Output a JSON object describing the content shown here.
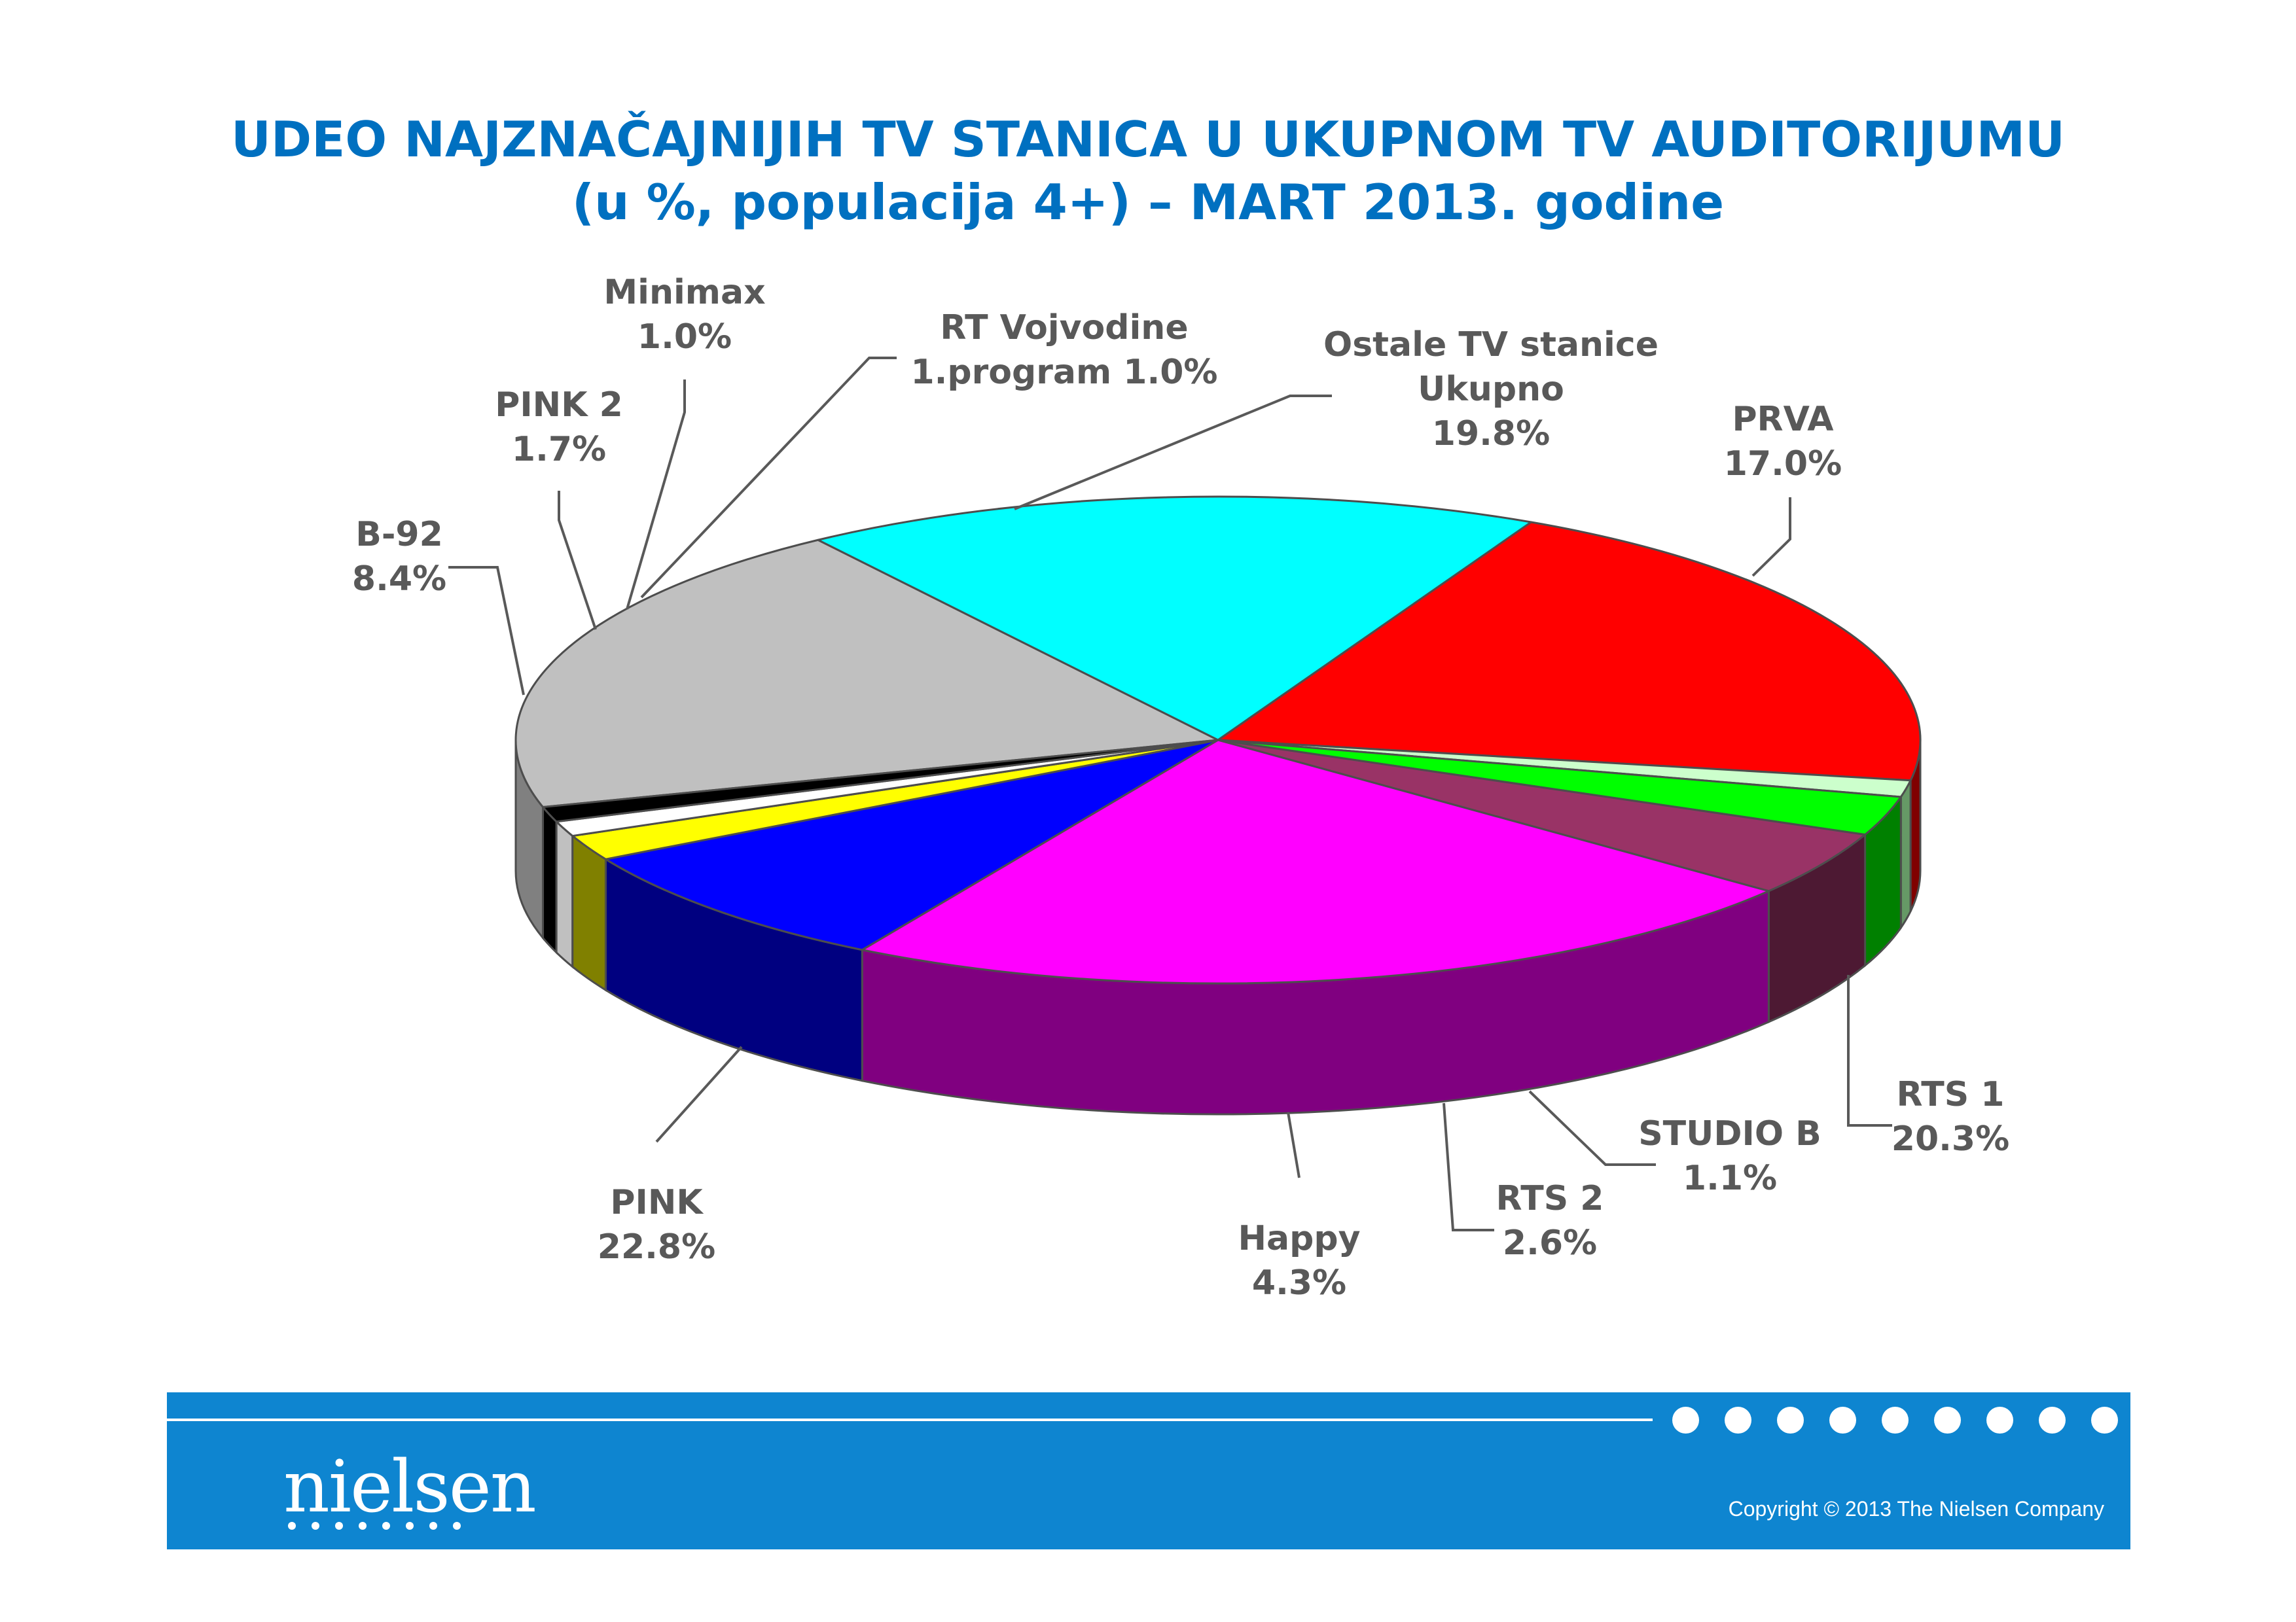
{
  "title": {
    "line1": "UDEO NAJZNAČAJNIJIH TV STANICA U UKUPNOM TV AUDITORIJUMU",
    "line2": "(u %, populacija 4+) – MART 2013. godine"
  },
  "chart_data": {
    "type": "pie",
    "title": "UDEO NAJZNAČAJNIJIH TV STANICA U UKUPNOM TV AUDITORIJUMU (u %, populacija 4+) – MART 2013. godine",
    "style": "3d-exploded-none",
    "slices": [
      {
        "name": "Ostale TV stanice Ukupno",
        "label_lines": [
          "Ostale TV stanice",
          "Ukupno",
          "19.8%"
        ],
        "value": 19.8,
        "top_color": "#c0c0c0",
        "side_color": "#808080"
      },
      {
        "name": "PRVA",
        "label_lines": [
          "PRVA",
          "17.0%"
        ],
        "value": 17.0,
        "top_color": "#00ffff",
        "side_color": "#008080"
      },
      {
        "name": "RTS 1",
        "label_lines": [
          "RTS 1",
          "20.3%"
        ],
        "value": 20.3,
        "top_color": "#ff0000",
        "side_color": "#800000"
      },
      {
        "name": "STUDIO B",
        "label_lines": [
          "STUDIO B",
          "1.1%"
        ],
        "value": 1.1,
        "top_color": "#ccffcc",
        "side_color": "#669966"
      },
      {
        "name": "RTS 2",
        "label_lines": [
          "RTS 2",
          "2.6%"
        ],
        "value": 2.6,
        "top_color": "#00ff00",
        "side_color": "#008000"
      },
      {
        "name": "Happy",
        "label_lines": [
          "Happy",
          "4.3%"
        ],
        "value": 4.3,
        "top_color": "#993366",
        "side_color": "#4d1933"
      },
      {
        "name": "PINK",
        "label_lines": [
          "PINK",
          "22.8%"
        ],
        "value": 22.8,
        "top_color": "#ff00ff",
        "side_color": "#800080"
      },
      {
        "name": "B-92",
        "label_lines": [
          "B-92",
          "8.4%"
        ],
        "value": 8.4,
        "top_color": "#0000ff",
        "side_color": "#000080"
      },
      {
        "name": "PINK 2",
        "label_lines": [
          "PINK 2",
          "1.7%"
        ],
        "value": 1.7,
        "top_color": "#ffff00",
        "side_color": "#808000"
      },
      {
        "name": "RT Vojvodine 1.program",
        "label_lines": [
          "RT Vojvodine",
          "1.program 1.0%"
        ],
        "value": 1.0,
        "top_color": "#ffffff",
        "side_color": "#c0c0c0"
      },
      {
        "name": "Minimax",
        "label_lines": [
          "Minimax",
          "1.0%"
        ],
        "value": 1.0,
        "top_color": "#000000",
        "side_color": "#000000"
      }
    ],
    "label_color": "#595959",
    "legend": "none"
  },
  "footer": {
    "logo": "nielsen",
    "copyright": "Copyright © 2013 The Nielsen Company"
  }
}
